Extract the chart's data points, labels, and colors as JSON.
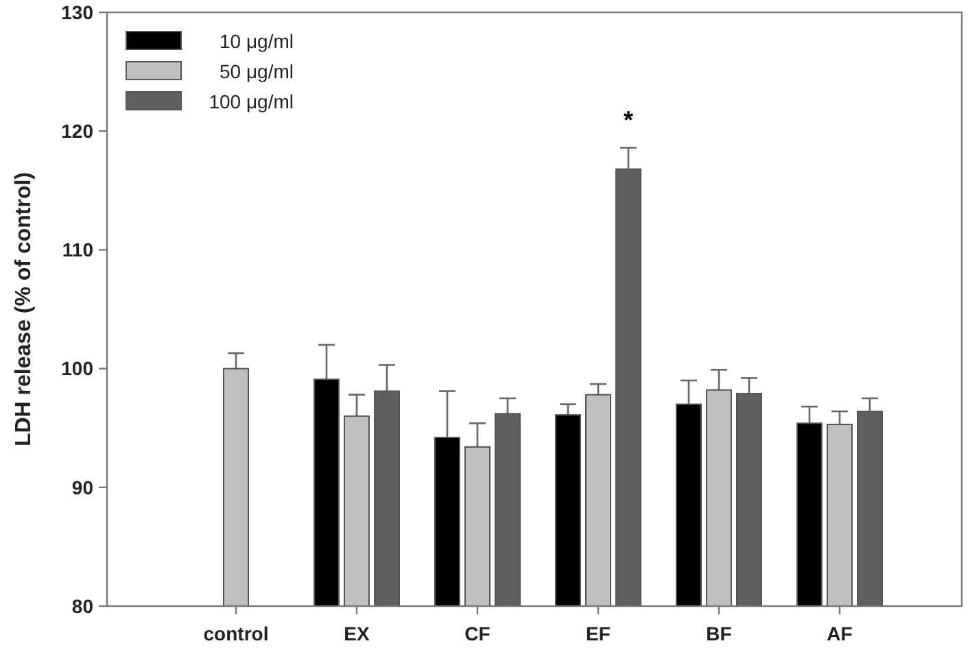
{
  "chart_data": {
    "type": "bar",
    "ylabel": "LDH release (% of control)",
    "categories": [
      "control",
      "EX",
      "CF",
      "EF",
      "BF",
      "AF"
    ],
    "series": [
      {
        "name": "10 μg/ml",
        "color": "#000000",
        "values": [
          null,
          99.1,
          94.2,
          96.1,
          97.0,
          95.4
        ],
        "errors": [
          null,
          2.9,
          3.9,
          0.9,
          2.0,
          1.4
        ]
      },
      {
        "name": "50 μg/ml",
        "color": "#c0c0c0",
        "values": [
          100.0,
          96.0,
          93.4,
          97.8,
          98.2,
          95.3
        ],
        "errors": [
          1.3,
          1.8,
          2.0,
          0.9,
          1.7,
          1.1
        ]
      },
      {
        "name": "100 μg/ml",
        "color": "#606060",
        "values": [
          null,
          98.1,
          96.2,
          116.8,
          97.9,
          96.4
        ],
        "errors": [
          null,
          2.2,
          1.3,
          1.8,
          1.3,
          1.1
        ]
      }
    ],
    "ylim": [
      80,
      130
    ],
    "yticks": [
      80,
      90,
      100,
      110,
      120,
      130
    ],
    "annotations": [
      "*"
    ],
    "legend": "top left"
  }
}
